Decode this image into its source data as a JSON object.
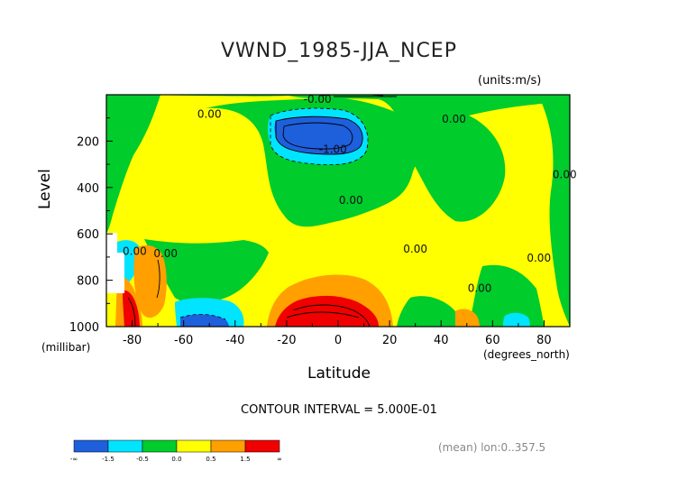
{
  "chart_data": {
    "type": "heatmap",
    "title": "VWND_1985-JJA_NCEP",
    "units_label": "(units:m/s)",
    "ylabel": "Level",
    "y_units": "(millibar)",
    "xlabel": "Latitude",
    "x_units": "(degrees_north)",
    "contour_interval": "CONTOUR INTERVAL = 5.000E-01",
    "footnote": "(mean) lon:0..357.5",
    "x_ticks": [
      -80,
      -60,
      -40,
      -20,
      0,
      20,
      40,
      60,
      80
    ],
    "y_ticks": [
      200,
      400,
      600,
      800,
      1000
    ],
    "xlim": [
      -90,
      90
    ],
    "ylim": [
      1000,
      0
    ],
    "colorbar": {
      "colors": [
        "#1e5fdc",
        "#00e4ff",
        "#00cc2c",
        "#ffff00",
        "#ff9f00",
        "#f00000"
      ],
      "labels": [
        "-∞",
        "-1.5",
        "-0.5",
        "0.0",
        "0.5",
        "1.5",
        "∞"
      ]
    },
    "contour_labels": [
      {
        "text": "0.00",
        "lat": -50,
        "level": 100
      },
      {
        "text": "-0.00",
        "lat": -8,
        "level": 35
      },
      {
        "text": "-1.00",
        "lat": -2,
        "level": 250
      },
      {
        "text": "0.00",
        "lat": 45,
        "level": 120
      },
      {
        "text": "0.00",
        "lat": 5,
        "level": 470
      },
      {
        "text": "0.00",
        "lat": -67,
        "level": 700
      },
      {
        "text": "0.00",
        "lat": -79,
        "level": 690
      },
      {
        "text": "0.00",
        "lat": 30,
        "level": 680
      },
      {
        "text": "0.00",
        "lat": 55,
        "level": 850
      },
      {
        "text": "0.00",
        "lat": 78,
        "level": 720
      },
      {
        "text": "0.00",
        "lat": 88,
        "level": 360
      }
    ]
  }
}
